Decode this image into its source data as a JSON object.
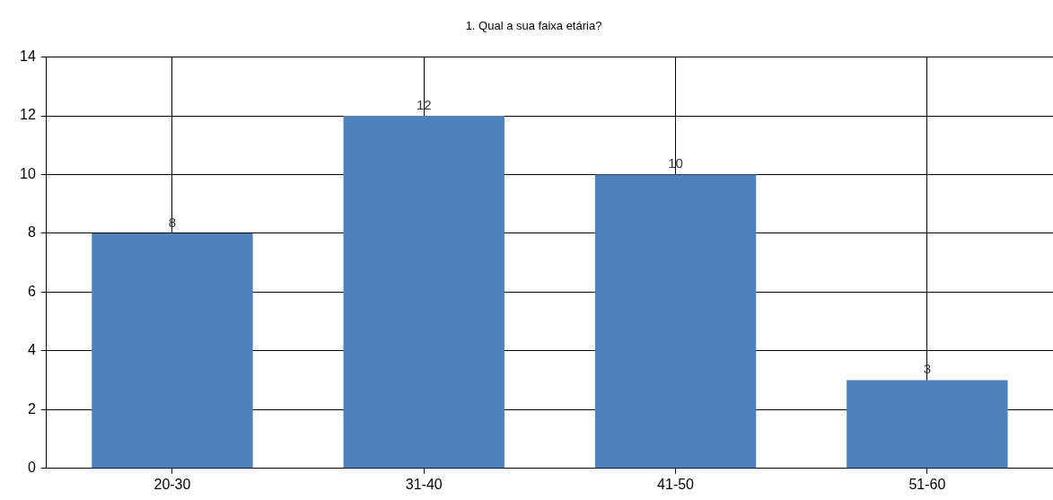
{
  "chart_data": {
    "type": "bar",
    "title": "1. Qual a sua faixa etária?",
    "categories": [
      "20-30",
      "31-40",
      "41-50",
      "51-60"
    ],
    "values": [
      8,
      12,
      10,
      3
    ],
    "color": "#4f81bd",
    "ylim": [
      0,
      14
    ],
    "yticks": [
      0,
      2,
      4,
      6,
      8,
      10,
      12,
      14
    ],
    "grid": true,
    "legend": false,
    "data_labels": true
  }
}
